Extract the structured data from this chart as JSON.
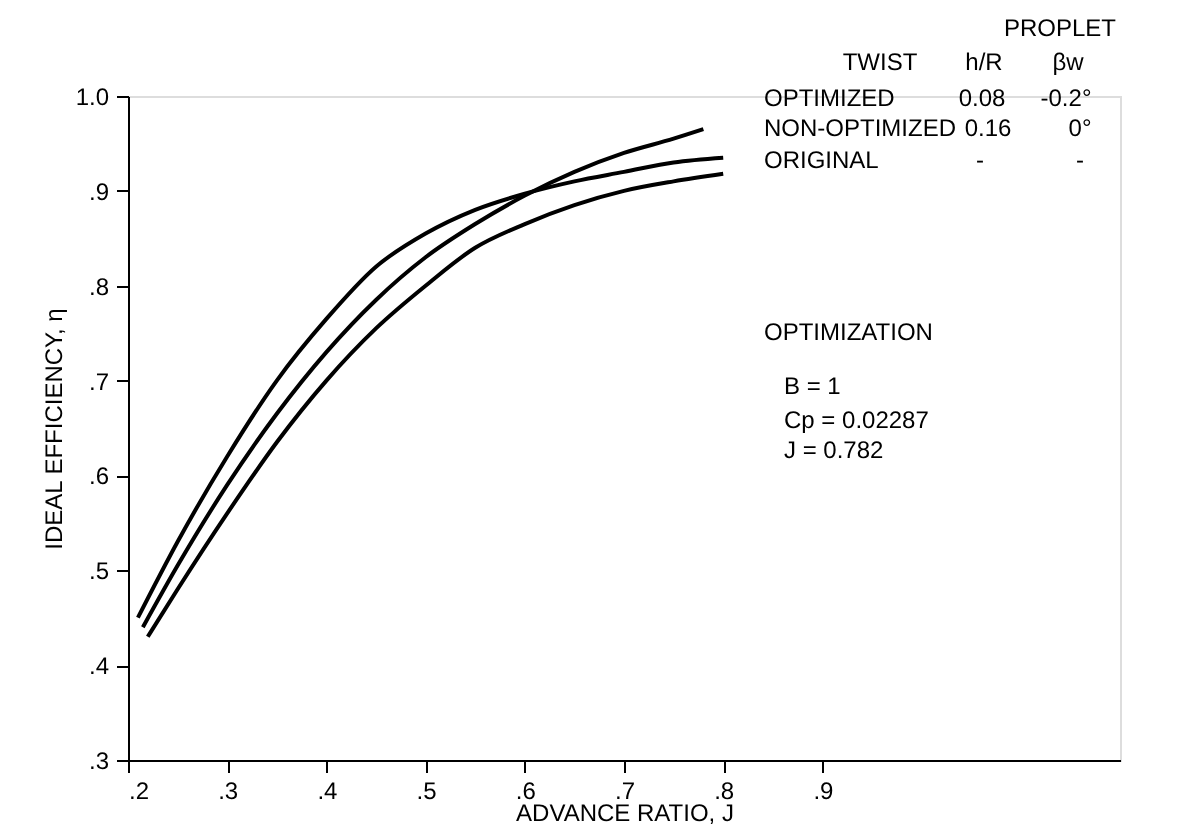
{
  "chart_data": {
    "type": "line",
    "xlabel": "ADVANCE RATIO, J",
    "ylabel": "IDEAL EFFICIENCY, η",
    "xlim": [
      0.2,
      1.2
    ],
    "ylim": [
      0.3,
      1.0
    ],
    "xticks": [
      {
        "value": 0.2,
        "label": ".2"
      },
      {
        "value": 0.3,
        "label": ".3"
      },
      {
        "value": 0.4,
        "label": ".4"
      },
      {
        "value": 0.5,
        "label": ".5"
      },
      {
        "value": 0.6,
        "label": ".6"
      },
      {
        "value": 0.7,
        "label": ".7"
      },
      {
        "value": 0.8,
        "label": ".8"
      },
      {
        "value": 0.9,
        "label": ".9"
      }
    ],
    "yticks": [
      {
        "value": 0.3,
        "label": ".3"
      },
      {
        "value": 0.4,
        "label": ".4"
      },
      {
        "value": 0.5,
        "label": ".5"
      },
      {
        "value": 0.6,
        "label": ".6"
      },
      {
        "value": 0.7,
        "label": ".7"
      },
      {
        "value": 0.8,
        "label": ".8"
      },
      {
        "value": 0.9,
        "label": ".9"
      },
      {
        "value": 1.0,
        "label": "1.0"
      }
    ],
    "series": [
      {
        "color": "#000000",
        "x": [
          0.21,
          0.25,
          0.3,
          0.35,
          0.4,
          0.45,
          0.5,
          0.55,
          0.6,
          0.65,
          0.7,
          0.75,
          0.8
        ],
        "values": [
          0.45,
          0.53,
          0.62,
          0.7,
          0.765,
          0.82,
          0.855,
          0.88,
          0.897,
          0.91,
          0.92,
          0.93,
          0.935
        ]
      },
      {
        "color": "#000000",
        "x": [
          0.215,
          0.25,
          0.3,
          0.35,
          0.4,
          0.45,
          0.5,
          0.55,
          0.6,
          0.65,
          0.7,
          0.75,
          0.78
        ],
        "values": [
          0.44,
          0.505,
          0.59,
          0.665,
          0.73,
          0.785,
          0.83,
          0.865,
          0.895,
          0.92,
          0.94,
          0.955,
          0.965
        ]
      },
      {
        "color": "#000000",
        "x": [
          0.22,
          0.25,
          0.3,
          0.35,
          0.4,
          0.45,
          0.5,
          0.55,
          0.6,
          0.65,
          0.7,
          0.75,
          0.8
        ],
        "values": [
          0.43,
          0.48,
          0.56,
          0.635,
          0.7,
          0.755,
          0.8,
          0.84,
          0.865,
          0.885,
          0.9,
          0.91,
          0.918
        ]
      }
    ],
    "annotations": [
      "PROPLET",
      "TWIST",
      "h/R",
      "βw",
      "OPTIMIZED",
      "0.08",
      "-0.2°",
      "NON-OPTIMIZED",
      "0.16",
      "0°",
      "ORIGINAL",
      "-",
      "-",
      "OPTIMIZATION",
      "B = 1",
      "Cp = 0.02287",
      "J = 0.782"
    ]
  }
}
